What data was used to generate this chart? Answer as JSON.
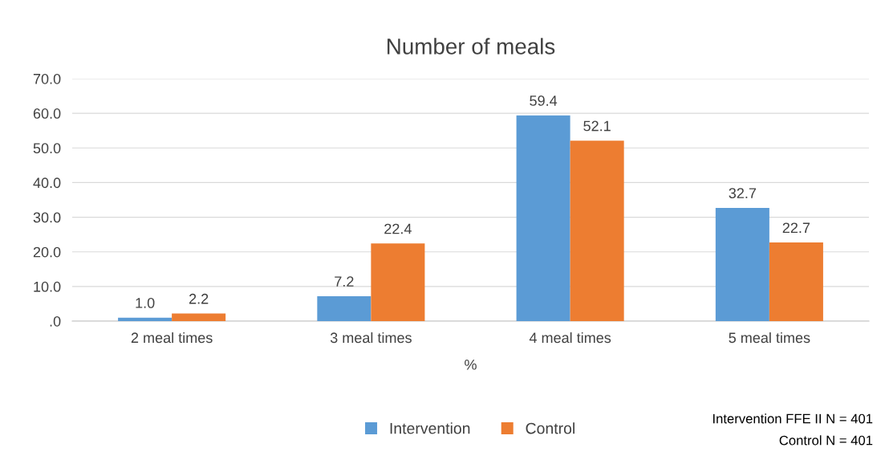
{
  "chart_data": {
    "type": "bar",
    "title": "Number of meals",
    "xlabel": "%",
    "categories": [
      "2 meal times",
      "3 meal times",
      "4 meal times",
      "5 meal times"
    ],
    "series": [
      {
        "name": "Intervention",
        "color": "#5b9bd5",
        "values": [
          1.0,
          7.2,
          59.4,
          32.7
        ],
        "value_labels": [
          "1.0",
          "7.2",
          "59.4",
          "32.7"
        ]
      },
      {
        "name": "Control",
        "color": "#ed7d31",
        "values": [
          2.2,
          22.4,
          52.1,
          22.7
        ],
        "value_labels": [
          "2.2",
          "22.4",
          "52.1",
          "22.7"
        ]
      }
    ],
    "ylim": [
      0,
      70
    ],
    "yticks": [
      {
        "value": 0,
        "label": ".0"
      },
      {
        "value": 10,
        "label": "10.0"
      },
      {
        "value": 20,
        "label": "20.0"
      },
      {
        "value": 30,
        "label": "30.0"
      },
      {
        "value": 40,
        "label": "40.0"
      },
      {
        "value": 50,
        "label": "50.0"
      },
      {
        "value": 60,
        "label": "60.0"
      },
      {
        "value": 70,
        "label": "70.0"
      }
    ],
    "grid": "y",
    "legend": "bottom",
    "annotations": [
      "Intervention FFE II N = 401",
      "Control N = 401"
    ]
  }
}
